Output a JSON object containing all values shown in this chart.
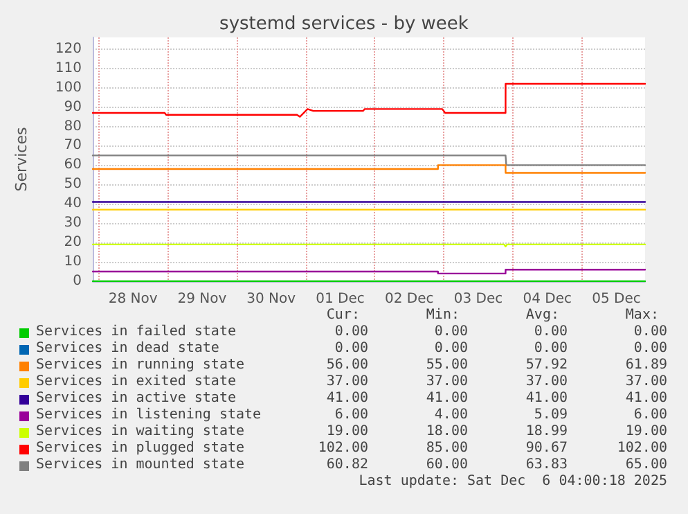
{
  "chart_data": {
    "type": "line",
    "title": "systemd services - by week",
    "ylabel": "Services",
    "xlim": [
      "2025-11-27T22:00",
      "2025-12-05T22:00"
    ],
    "xticks": [
      {
        "value": "2025-11-28T00:00",
        "label": null
      },
      {
        "value": "2025-11-28T12:00",
        "label": "28 Nov"
      },
      {
        "value": "2025-11-29T00:00",
        "label": null
      },
      {
        "value": "2025-11-29T12:00",
        "label": "29 Nov"
      },
      {
        "value": "2025-11-30T00:00",
        "label": null
      },
      {
        "value": "2025-11-30T12:00",
        "label": "30 Nov"
      },
      {
        "value": "2025-12-01T00:00",
        "label": null
      },
      {
        "value": "2025-12-01T12:00",
        "label": "01 Dec"
      },
      {
        "value": "2025-12-02T00:00",
        "label": null
      },
      {
        "value": "2025-12-02T12:00",
        "label": "02 Dec"
      },
      {
        "value": "2025-12-03T00:00",
        "label": null
      },
      {
        "value": "2025-12-03T12:00",
        "label": "03 Dec"
      },
      {
        "value": "2025-12-04T00:00",
        "label": null
      },
      {
        "value": "2025-12-04T12:00",
        "label": "04 Dec"
      },
      {
        "value": "2025-12-05T00:00",
        "label": null
      },
      {
        "value": "2025-12-05T12:00",
        "label": "05 Dec"
      }
    ],
    "ylim": [
      0,
      126
    ],
    "yticks": [
      0,
      10,
      20,
      30,
      40,
      50,
      60,
      70,
      80,
      90,
      100,
      110,
      120
    ],
    "grid": true,
    "legend": "bottom",
    "marker": "none",
    "line_style": "solid",
    "series": [
      {
        "name": "Services in failed state",
        "color": "#00cc00",
        "x": [
          "2025-11-27T22:00",
          "2025-12-05T22:00"
        ],
        "values": [
          0,
          0
        ]
      },
      {
        "name": "Services in dead state",
        "color": "#0066b3"
      },
      {
        "name": "Services in running state",
        "color": "#ff8000",
        "x": [
          "2025-11-27T22:00",
          "2025-12-02T22:00",
          "2025-12-02T22:01",
          "2025-12-03T21:30",
          "2025-12-03T21:31",
          "2025-12-05T22:00"
        ],
        "values": [
          58,
          58,
          60,
          60,
          56,
          56
        ]
      },
      {
        "name": "Services in exited state",
        "color": "#ffcc00",
        "x": [
          "2025-11-27T22:00",
          "2025-12-05T22:00"
        ],
        "values": [
          37,
          37
        ]
      },
      {
        "name": "Services in active state",
        "color": "#330099",
        "x": [
          "2025-11-27T22:00",
          "2025-12-05T22:00"
        ],
        "values": [
          41,
          41
        ]
      },
      {
        "name": "Services in listening state",
        "color": "#990099",
        "x": [
          "2025-11-27T22:00",
          "2025-12-02T22:00",
          "2025-12-02T22:01",
          "2025-12-03T21:30",
          "2025-12-03T21:31",
          "2025-12-05T22:00"
        ],
        "values": [
          5,
          5,
          4,
          4,
          6,
          6
        ]
      },
      {
        "name": "Services in waiting state",
        "color": "#ccff00",
        "x": [
          "2025-11-27T22:00",
          "2025-12-03T21:00",
          "2025-12-03T21:30",
          "2025-12-03T22:00",
          "2025-12-05T22:00"
        ],
        "values": [
          19,
          19,
          18,
          19,
          19
        ]
      },
      {
        "name": "Services in plugged state",
        "color": "#ff0000",
        "x": [
          "2025-11-27T22:00",
          "2025-11-28T23:00",
          "2025-11-28T23:30",
          "2025-11-30T21:00",
          "2025-11-30T22:00",
          "2025-12-01T00:40",
          "2025-12-01T02:40",
          "2025-12-01T20:00",
          "2025-12-01T20:30",
          "2025-12-02T23:30",
          "2025-12-03T00:30",
          "2025-12-03T21:30",
          "2025-12-03T21:31",
          "2025-12-05T22:00"
        ],
        "values": [
          87,
          87,
          86,
          86,
          85,
          89,
          88,
          88,
          89,
          89,
          87,
          87,
          102,
          102
        ]
      },
      {
        "name": "Services in mounted state",
        "color": "#808080",
        "x": [
          "2025-11-27T22:00",
          "2025-12-03T21:30",
          "2025-12-03T21:45",
          "2025-12-05T22:00"
        ],
        "values": [
          65,
          65,
          60,
          60
        ]
      }
    ],
    "annotations": [
      "Cur:",
      "Min:",
      "Avg:",
      "Max:",
      "0.00",
      "0.00",
      "0.00",
      "0.00",
      "0.00",
      "0.00",
      "0.00",
      "0.00",
      "56.00",
      "55.00",
      "57.92",
      "61.89",
      "37.00",
      "37.00",
      "37.00",
      "37.00",
      "41.00",
      "41.00",
      "41.00",
      "41.00",
      "6.00",
      "4.00",
      "5.09",
      "6.00",
      "19.00",
      "18.00",
      "18.99",
      "19.00",
      "102.00",
      "85.00",
      "90.67",
      "102.00",
      "60.82",
      "60.00",
      "63.83",
      "65.00",
      "Last update: Sat Dec  6 04:00:18 2025"
    ]
  }
}
